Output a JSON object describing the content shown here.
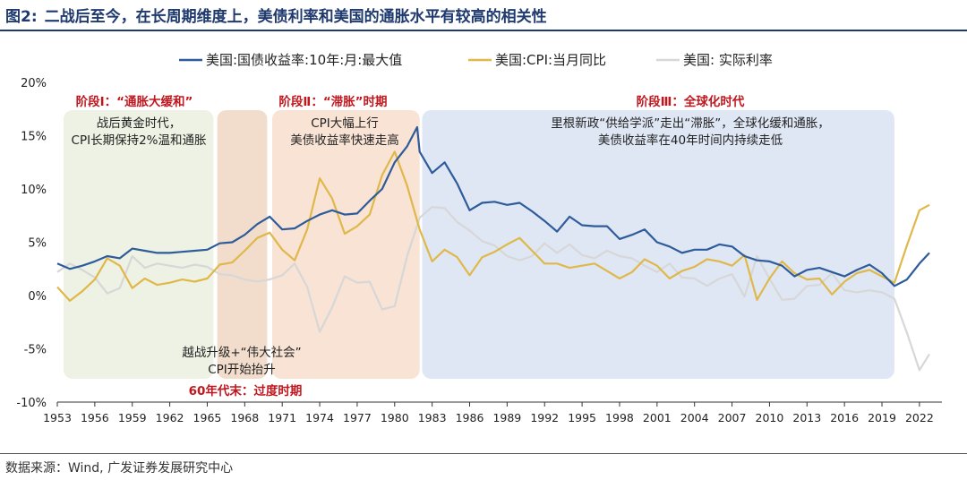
{
  "header": {
    "figure_label": "图2:",
    "title": "二战后至今，在长周期维度上，美债利率和美国的通胀水平有较高的相关性"
  },
  "source": "数据来源：Wind, 广发证券发展研究中心",
  "colors": {
    "treasury": "#2e5b9a",
    "cpi": "#e0b84a",
    "real": "#d7d7d7",
    "red": "#c0171f"
  },
  "chart_data": {
    "type": "line",
    "title": "二战后至今，在长周期维度上，美债利率和美国的通胀水平有较高的相关性",
    "xlabel": "",
    "ylabel": "",
    "xlim": [
      1953,
      2023.8
    ],
    "ylim": [
      -10,
      20
    ],
    "grid": false,
    "legend_position": "top",
    "y_ticks": [
      -10,
      -5,
      0,
      5,
      10,
      15,
      20
    ],
    "y_tick_labels": [
      "-10%",
      "-5%",
      "0%",
      "5%",
      "10%",
      "15%",
      "20%"
    ],
    "x_tick_labels": [
      "1953",
      "1956",
      "1959",
      "1962",
      "1965",
      "1968",
      "1971",
      "1974",
      "1977",
      "1980",
      "1983",
      "1986",
      "1989",
      "1992",
      "1995",
      "1998",
      "2001",
      "2004",
      "2007",
      "2010",
      "2013",
      "2016",
      "2019",
      "2022"
    ],
    "series": [
      {
        "name": "美国:国债收益率:10年:月:最大值",
        "color": "#2e5b9a",
        "x": [
          1953,
          1954,
          1955,
          1956,
          1957,
          1958,
          1959,
          1960,
          1961,
          1962,
          1963,
          1964,
          1965,
          1966,
          1967,
          1968,
          1969,
          1970,
          1971,
          1972,
          1973,
          1974,
          1975,
          1976,
          1977,
          1978,
          1979,
          1980,
          1981,
          1981.8,
          1982,
          1983,
          1984,
          1985,
          1986,
          1987,
          1988,
          1989,
          1990,
          1991,
          1992,
          1993,
          1994,
          1995,
          1996,
          1997,
          1998,
          1999,
          2000,
          2001,
          2002,
          2003,
          2004,
          2005,
          2006,
          2007,
          2008,
          2009,
          2010,
          2011,
          2012,
          2013,
          2014,
          2015,
          2016,
          2017,
          2018,
          2019,
          2020,
          2021,
          2022,
          2022.8
        ],
        "y": [
          3.0,
          2.5,
          2.8,
          3.2,
          3.7,
          3.5,
          4.4,
          4.2,
          4.0,
          4.0,
          4.1,
          4.2,
          4.3,
          4.9,
          5.0,
          5.7,
          6.7,
          7.4,
          6.2,
          6.3,
          7.0,
          7.6,
          8.0,
          7.6,
          7.7,
          8.9,
          10.0,
          12.5,
          14.0,
          15.8,
          13.5,
          11.5,
          12.5,
          10.5,
          8.0,
          8.7,
          8.8,
          8.5,
          8.7,
          7.9,
          7.0,
          6.0,
          7.4,
          6.6,
          6.5,
          6.5,
          5.3,
          5.7,
          6.2,
          5.0,
          4.6,
          4.0,
          4.3,
          4.3,
          4.8,
          4.6,
          3.7,
          3.3,
          3.2,
          2.8,
          1.8,
          2.4,
          2.6,
          2.2,
          1.8,
          2.4,
          2.9,
          2.1,
          0.9,
          1.5,
          3.0,
          4.0
        ]
      },
      {
        "name": "美国:CPI:当月同比",
        "color": "#e0b84a",
        "x": [
          1953,
          1954,
          1955,
          1956,
          1957,
          1958,
          1959,
          1960,
          1961,
          1962,
          1963,
          1964,
          1965,
          1966,
          1967,
          1968,
          1969,
          1970,
          1971,
          1972,
          1973,
          1974,
          1975,
          1976,
          1977,
          1978,
          1979,
          1980,
          1981,
          1982,
          1983,
          1984,
          1985,
          1986,
          1987,
          1988,
          1989,
          1990,
          1991,
          1992,
          1993,
          1994,
          1995,
          1996,
          1997,
          1998,
          1999,
          2000,
          2001,
          2002,
          2003,
          2004,
          2005,
          2006,
          2007,
          2008,
          2009,
          2010,
          2011,
          2012,
          2013,
          2014,
          2015,
          2016,
          2017,
          2018,
          2019,
          2020,
          2021,
          2022,
          2022.8
        ],
        "y": [
          0.8,
          -0.5,
          0.4,
          1.5,
          3.5,
          2.8,
          0.7,
          1.6,
          1.0,
          1.2,
          1.5,
          1.3,
          1.6,
          2.9,
          3.1,
          4.2,
          5.4,
          5.9,
          4.3,
          3.3,
          6.2,
          11.0,
          9.1,
          5.8,
          6.5,
          7.6,
          11.3,
          13.5,
          10.3,
          6.2,
          3.2,
          4.3,
          3.6,
          1.9,
          3.6,
          4.1,
          4.8,
          5.4,
          4.2,
          3.0,
          3.0,
          2.6,
          2.8,
          3.0,
          2.3,
          1.6,
          2.2,
          3.4,
          2.8,
          1.6,
          2.3,
          2.7,
          3.4,
          3.2,
          2.8,
          3.8,
          -0.4,
          1.6,
          3.2,
          2.1,
          1.5,
          1.6,
          0.1,
          1.3,
          2.1,
          2.4,
          1.8,
          1.2,
          4.7,
          8.0,
          8.5
        ]
      },
      {
        "name": "美国: 实际利率",
        "color": "#d7d7d7",
        "x": [
          1953,
          1954,
          1955,
          1956,
          1957,
          1958,
          1959,
          1960,
          1961,
          1962,
          1963,
          1964,
          1965,
          1966,
          1967,
          1968,
          1969,
          1970,
          1971,
          1972,
          1973,
          1974,
          1975,
          1976,
          1977,
          1978,
          1979,
          1980,
          1981,
          1982,
          1983,
          1984,
          1985,
          1986,
          1987,
          1988,
          1989,
          1990,
          1991,
          1992,
          1993,
          1994,
          1995,
          1996,
          1997,
          1998,
          1999,
          2000,
          2001,
          2002,
          2003,
          2004,
          2005,
          2006,
          2007,
          2008,
          2009,
          2010,
          2011,
          2012,
          2013,
          2014,
          2015,
          2016,
          2017,
          2018,
          2019,
          2020,
          2021,
          2022,
          2022.8
        ],
        "y": [
          2.2,
          3.0,
          2.4,
          1.7,
          0.2,
          0.7,
          3.7,
          2.6,
          3.0,
          2.8,
          2.6,
          2.9,
          2.7,
          2.0,
          1.9,
          1.5,
          1.3,
          1.5,
          1.9,
          3.0,
          0.8,
          -3.4,
          -1.1,
          1.8,
          1.2,
          1.3,
          -1.3,
          -1.0,
          3.7,
          7.3,
          8.3,
          8.2,
          6.9,
          6.1,
          5.1,
          4.7,
          3.7,
          3.3,
          3.7,
          4.9,
          4.0,
          4.8,
          3.8,
          3.5,
          4.2,
          3.7,
          3.5,
          2.8,
          2.2,
          3.0,
          1.7,
          1.6,
          0.9,
          1.6,
          2.0,
          -0.1,
          3.7,
          1.6,
          -0.4,
          -0.3,
          0.9,
          1.0,
          2.1,
          0.5,
          0.3,
          0.5,
          0.3,
          -0.3,
          -3.5,
          -7.0,
          -5.5
        ]
      }
    ],
    "phases": [
      {
        "name": "phase-1",
        "range": [
          1953.5,
          1965.5
        ],
        "color": "#eef2e4",
        "label": "阶段Ⅰ：“通胀大缓和”",
        "note": [
          "战后黄金时代，",
          "CPI长期保持2%温和通胀"
        ]
      },
      {
        "name": "transition",
        "range": [
          1965.8,
          1969.8
        ],
        "color": "#f2ddcc",
        "label": "",
        "note": []
      },
      {
        "name": "phase-2",
        "range": [
          1970.2,
          1982.0
        ],
        "color": "#f8e3d4",
        "label": "阶段Ⅱ：“滞胀”时期",
        "note": [
          "CPI大幅上行",
          "美债收益率快速走高"
        ]
      },
      {
        "name": "phase-3",
        "range": [
          1982.2,
          2020.0
        ],
        "color": "#dfe7f5",
        "label": "阶段Ⅲ：全球化时代",
        "note": [
          "里根新政“供给学派”走出“滞胀”，全球化缓和通胀，",
          "美债收益率在40年时间内持续走低"
        ]
      }
    ],
    "transition_note": [
      "越战升级+“伟大社会”",
      "CPI开始抬升"
    ],
    "transition_label": "60年代末：过度时期"
  }
}
